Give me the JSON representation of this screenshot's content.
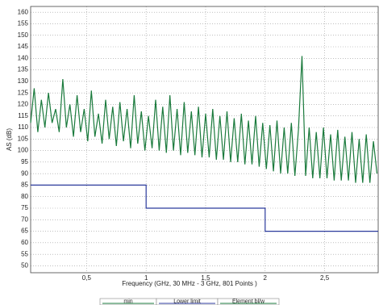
{
  "chart_data": {
    "type": "line",
    "xlabel": "Frequency (GHz, 30 MHz - 3 GHz, 801 Points )",
    "ylabel": "AS (dB)",
    "xlim": [
      0.03,
      2.95
    ],
    "ylim": [
      47,
      162.5
    ],
    "xticks": [
      {
        "value": 0.5,
        "label": "0,5"
      },
      1,
      {
        "value": 1.5,
        "label": "1,5"
      },
      2,
      {
        "value": 2.5,
        "label": "2,5"
      }
    ],
    "yticks": [
      50,
      55,
      60,
      65,
      70,
      75,
      80,
      85,
      90,
      95,
      100,
      105,
      110,
      115,
      120,
      125,
      130,
      135,
      140,
      145,
      150,
      155,
      160
    ],
    "grid": true,
    "legend": "bottom",
    "series": [
      {
        "name": "min",
        "color": "#1a7a3c",
        "x": [],
        "values": []
      },
      {
        "name": "Lower limit",
        "color": "#2b3a9c",
        "x": [
          0.03,
          1,
          1,
          2,
          2,
          2.95
        ],
        "values": [
          85,
          85,
          75,
          75,
          65,
          65
        ]
      },
      {
        "name": "Element bl/w",
        "color": "#1a7a3c",
        "x": [
          0.03,
          0.06,
          0.09,
          0.12,
          0.15,
          0.18,
          0.21,
          0.24,
          0.27,
          0.3,
          0.33,
          0.36,
          0.39,
          0.42,
          0.45,
          0.48,
          0.51,
          0.54,
          0.57,
          0.6,
          0.63,
          0.66,
          0.69,
          0.72,
          0.75,
          0.78,
          0.81,
          0.84,
          0.87,
          0.9,
          0.93,
          0.96,
          0.99,
          1.02,
          1.05,
          1.08,
          1.11,
          1.14,
          1.17,
          1.2,
          1.23,
          1.26,
          1.29,
          1.32,
          1.35,
          1.38,
          1.41,
          1.44,
          1.47,
          1.5,
          1.53,
          1.56,
          1.59,
          1.62,
          1.65,
          1.68,
          1.71,
          1.74,
          1.77,
          1.8,
          1.83,
          1.86,
          1.89,
          1.92,
          1.95,
          1.98,
          2.01,
          2.04,
          2.07,
          2.1,
          2.13,
          2.16,
          2.19,
          2.22,
          2.25,
          2.28,
          2.31,
          2.34,
          2.37,
          2.4,
          2.43,
          2.46,
          2.49,
          2.52,
          2.55,
          2.58,
          2.61,
          2.64,
          2.67,
          2.7,
          2.73,
          2.76,
          2.79,
          2.82,
          2.85,
          2.88,
          2.91,
          2.94
        ],
        "values": [
          112,
          127,
          108,
          122,
          110,
          125,
          112,
          118,
          108,
          131,
          110,
          120,
          106,
          124,
          108,
          118,
          104,
          126,
          106,
          116,
          103,
          122,
          105,
          119,
          102,
          121,
          104,
          118,
          101,
          124,
          103,
          117,
          100,
          115,
          101,
          122,
          100,
          119,
          99,
          124,
          100,
          118,
          98,
          121,
          99,
          117,
          98,
          119,
          97,
          116,
          97,
          118,
          96,
          115,
          96,
          117,
          95,
          114,
          95,
          116,
          94,
          113,
          94,
          115,
          93,
          112,
          92,
          111,
          91,
          113,
          90,
          110,
          90,
          112,
          89,
          109,
          141,
          89,
          110,
          88,
          108,
          88,
          110,
          88,
          107,
          87,
          109,
          87,
          106,
          87,
          108,
          86,
          105,
          86,
          107,
          86,
          104,
          90
        ]
      }
    ]
  }
}
